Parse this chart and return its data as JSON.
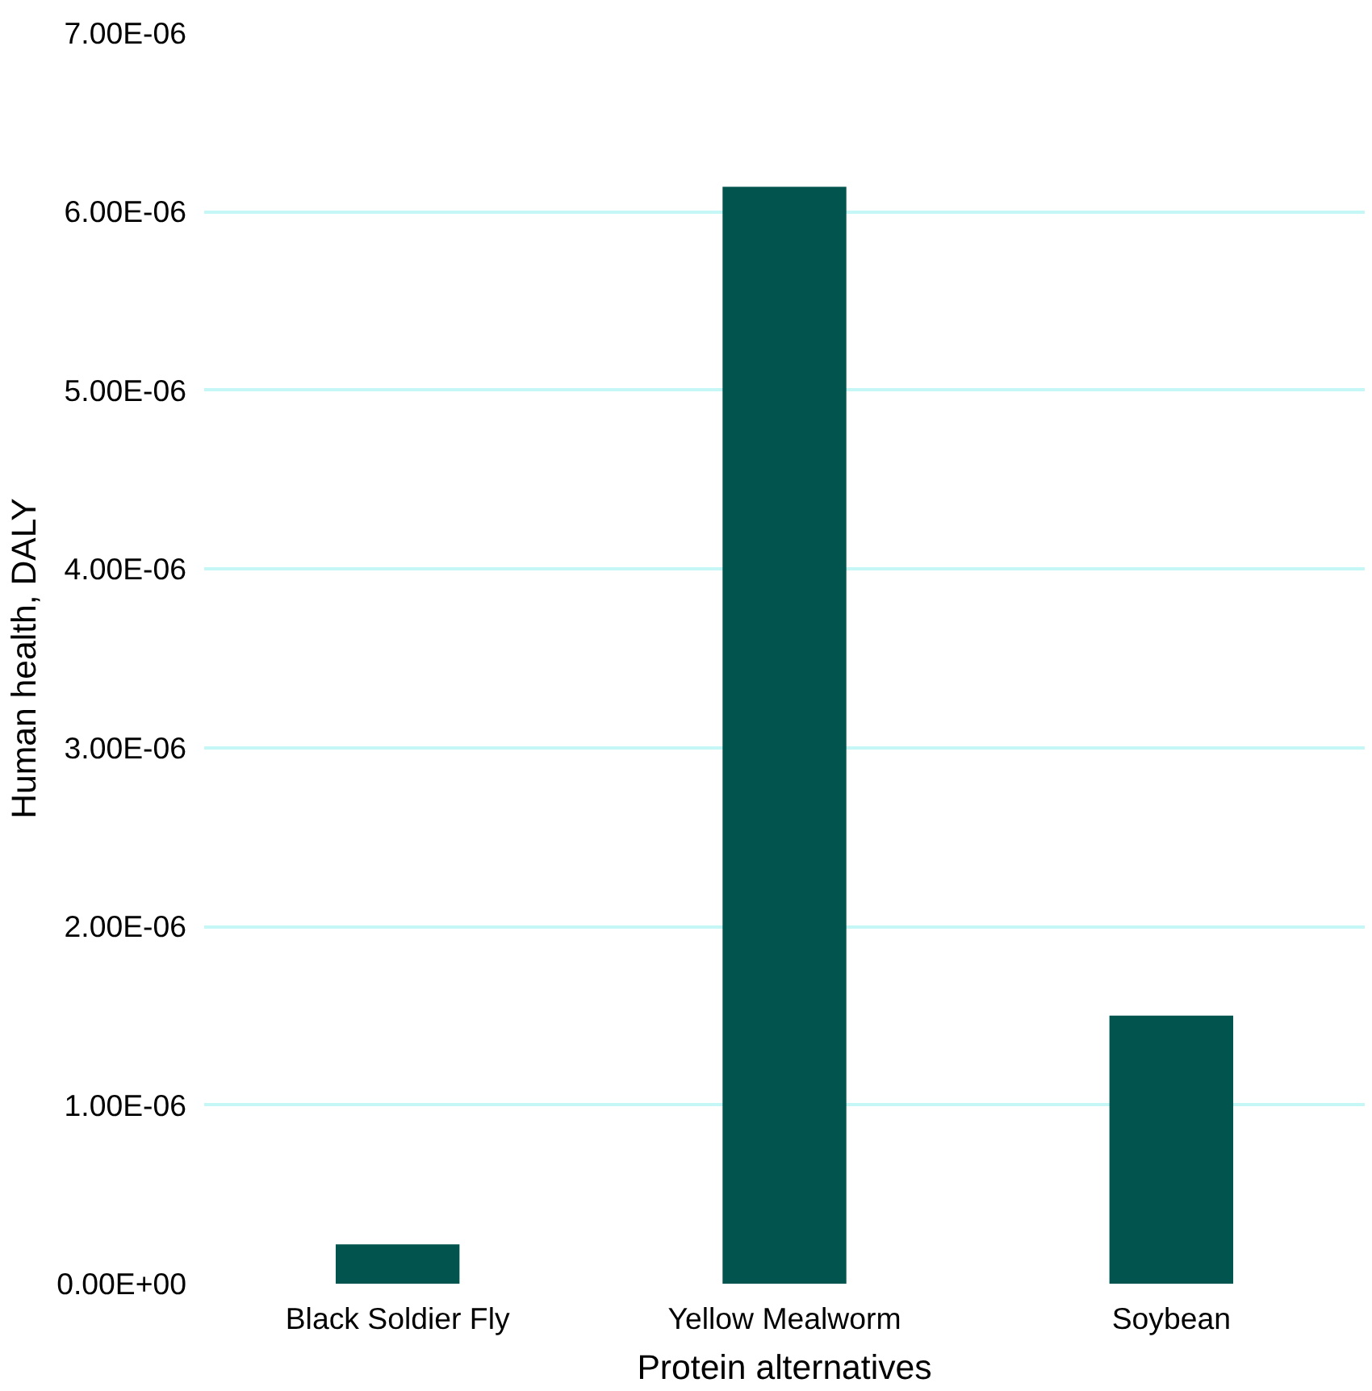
{
  "chart_data": {
    "type": "bar",
    "xlabel": "Protein alternatives",
    "ylabel": "Human health, DALY",
    "categories": [
      "Black Soldier Fly",
      "Yellow Mealworm",
      "Soybean"
    ],
    "values": [
      2.2e-07,
      6.14e-06,
      1.5e-06
    ],
    "color": "#02554f",
    "ylim": [
      0,
      7e-06
    ],
    "yticks": [
      {
        "value": 0,
        "label": "0.00E+00"
      },
      {
        "value": 1e-06,
        "label": "1.00E-06"
      },
      {
        "value": 2e-06,
        "label": "2.00E-06"
      },
      {
        "value": 3e-06,
        "label": "3.00E-06"
      },
      {
        "value": 4e-06,
        "label": "4.00E-06"
      },
      {
        "value": 5e-06,
        "label": "5.00E-06"
      },
      {
        "value": 6e-06,
        "label": "6.00E-06"
      },
      {
        "value": 7e-06,
        "label": "7.00E-06"
      }
    ],
    "grid": "y"
  }
}
